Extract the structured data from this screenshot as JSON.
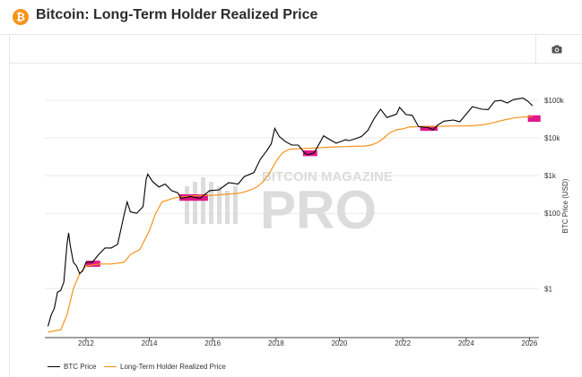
{
  "header": {
    "logo_symbol": "₿",
    "title": "Bitcoin: Long-Term Holder Realized Price"
  },
  "toolbar": {
    "camera_icon": "camera-icon"
  },
  "colors": {
    "price": "#000000",
    "lthrp": "#f7931a",
    "highlight": "#e0168a",
    "grid": "#e9e9e9"
  },
  "watermark": {
    "line1": "BITCOIN MAGAZINE",
    "line2": "PRO"
  },
  "chart_data": {
    "type": "line",
    "title": "Bitcoin: Long-Term Holder Realized Price",
    "xlabel": "",
    "ylabel": "BTC Price (USD)",
    "y_scale": "log",
    "ylim": [
      0.05,
      300000
    ],
    "xlim": [
      2010.7,
      2026.3
    ],
    "y_tick_values": [
      1,
      100,
      1000,
      10000,
      100000
    ],
    "y_tick_labels": [
      "$1",
      "$100",
      "$1k",
      "$10k",
      "$100k"
    ],
    "x_tick_values": [
      2012,
      2014,
      2016,
      2018,
      2020,
      2022,
      2024,
      2026
    ],
    "x_tick_labels": [
      "2012",
      "2014",
      "2016",
      "2018",
      "2020",
      "2022",
      "2024",
      "2026"
    ],
    "legend": [
      {
        "name": "BTC Price",
        "color": "#000000"
      },
      {
        "name": "Long-Term Holder Realized Price",
        "color": "#f7931a"
      }
    ],
    "series": [
      {
        "name": "BTC Price",
        "x": [
          2010.8,
          2010.9,
          2011.0,
          2011.1,
          2011.2,
          2011.3,
          2011.4,
          2011.45,
          2011.5,
          2011.6,
          2011.7,
          2011.8,
          2011.9,
          2012.0,
          2012.2,
          2012.4,
          2012.6,
          2012.8,
          2013.0,
          2013.2,
          2013.3,
          2013.4,
          2013.6,
          2013.8,
          2013.9,
          2013.95,
          2014.1,
          2014.3,
          2014.5,
          2014.7,
          2014.9,
          2015.0,
          2015.3,
          2015.6,
          2015.9,
          2016.2,
          2016.5,
          2016.8,
          2017.0,
          2017.3,
          2017.5,
          2017.7,
          2017.85,
          2017.96,
          2018.1,
          2018.3,
          2018.5,
          2018.7,
          2018.9,
          2019.0,
          2019.2,
          2019.4,
          2019.5,
          2019.7,
          2019.9,
          2020.2,
          2020.3,
          2020.5,
          2020.7,
          2020.9,
          2021.1,
          2021.3,
          2021.5,
          2021.8,
          2021.9,
          2022.1,
          2022.3,
          2022.5,
          2022.8,
          2022.95,
          2023.1,
          2023.3,
          2023.6,
          2023.8,
          2024.0,
          2024.2,
          2024.5,
          2024.7,
          2024.9,
          2025.1,
          2025.3,
          2025.5,
          2025.8,
          2025.95,
          2026.1
        ],
        "values": [
          0.1,
          0.2,
          0.3,
          0.8,
          0.9,
          1.5,
          15,
          30,
          14,
          5,
          4,
          2.5,
          3,
          5,
          5,
          8,
          12,
          12,
          15,
          90,
          200,
          110,
          100,
          150,
          800,
          1100,
          700,
          500,
          600,
          400,
          350,
          250,
          280,
          250,
          400,
          420,
          650,
          600,
          950,
          1200,
          2700,
          4500,
          7000,
          18000,
          11000,
          8000,
          6500,
          6500,
          4000,
          3600,
          4000,
          8000,
          11500,
          9000,
          7300,
          9000,
          8500,
          9500,
          11000,
          16000,
          33000,
          58000,
          35000,
          43000,
          65000,
          42000,
          40000,
          20000,
          19000,
          16500,
          22000,
          28000,
          30000,
          27000,
          43000,
          68000,
          58000,
          57000,
          95000,
          100000,
          85000,
          105000,
          115000,
          95000,
          72000
        ]
      },
      {
        "name": "Long-Term Holder Realized Price",
        "x": [
          2010.8,
          2011.2,
          2011.4,
          2011.6,
          2011.8,
          2012.0,
          2012.4,
          2012.8,
          2013.2,
          2013.4,
          2013.7,
          2014.0,
          2014.2,
          2014.4,
          2014.8,
          2015.2,
          2015.6,
          2016.0,
          2016.4,
          2016.8,
          2017.0,
          2017.2,
          2017.4,
          2017.6,
          2017.8,
          2018.0,
          2018.2,
          2018.4,
          2018.7,
          2019.0,
          2019.4,
          2019.8,
          2020.2,
          2020.5,
          2020.8,
          2021.0,
          2021.2,
          2021.4,
          2021.6,
          2021.8,
          2022.0,
          2022.2,
          2022.4,
          2022.6,
          2022.8,
          2023.0,
          2023.3,
          2023.6,
          2024.0,
          2024.3,
          2024.6,
          2024.9,
          2025.2,
          2025.5,
          2025.8,
          2026.1
        ],
        "values": [
          0.07,
          0.08,
          0.2,
          1.0,
          2.5,
          4,
          4.5,
          4.5,
          5,
          8,
          11,
          35,
          100,
          200,
          260,
          280,
          295,
          300,
          320,
          340,
          370,
          420,
          500,
          700,
          1200,
          2400,
          4000,
          5000,
          5200,
          5300,
          5500,
          5800,
          5900,
          6000,
          6100,
          6500,
          7500,
          10000,
          14000,
          16500,
          17500,
          19500,
          20000,
          20100,
          20200,
          20300,
          20500,
          20800,
          21000,
          21500,
          23000,
          26000,
          30000,
          34000,
          36000,
          37000
        ]
      }
    ],
    "highlight_zones": [
      {
        "x0": 2012.0,
        "x1": 2012.45,
        "y_low": 3.8,
        "y_high": 5.5
      },
      {
        "x0": 2014.95,
        "x1": 2015.85,
        "y_low": 215,
        "y_high": 320
      },
      {
        "x0": 2018.85,
        "x1": 2019.3,
        "y_low": 3300,
        "y_high": 4700
      },
      {
        "x0": 2022.55,
        "x1": 2023.1,
        "y_low": 15500,
        "y_high": 21000
      },
      {
        "x0": 2025.95,
        "x1": 2026.35,
        "y_low": 27000,
        "y_high": 40000
      }
    ]
  }
}
